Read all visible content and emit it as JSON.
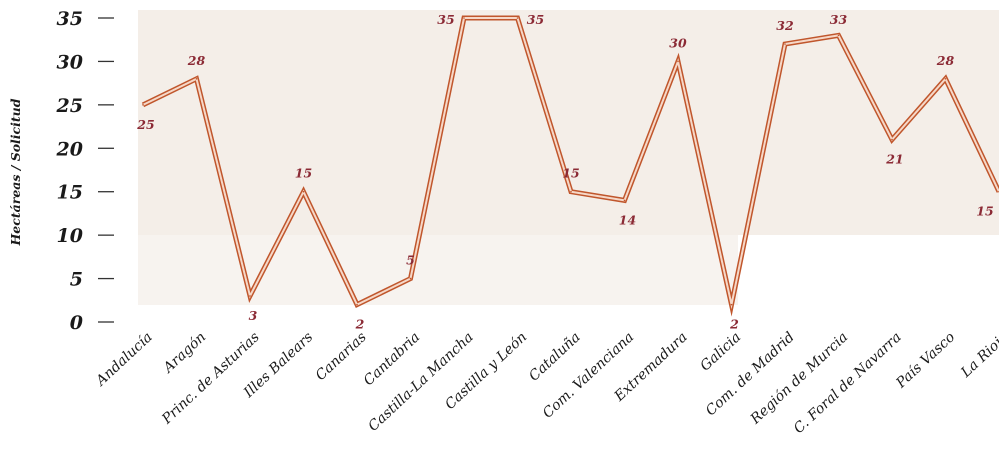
{
  "chart_data": {
    "type": "line",
    "title": "",
    "xlabel": "",
    "ylabel": "Hectáreas / Solicitud",
    "ylim": [
      0,
      35
    ],
    "yticks": [
      0,
      5,
      10,
      15,
      20,
      25,
      30,
      35
    ],
    "grid": false,
    "categories": [
      "Andalucía",
      "Aragón",
      "Princ. de Asturias",
      "Illes Balears",
      "Canarias",
      "Cantabria",
      "Castilla-La Mancha",
      "Castilla y León",
      "Cataluña",
      "Com. Valenciana",
      "Extremadura",
      "Galicia",
      "Com. de Madrid",
      "Región de Murcia",
      "C. Foral de Navarra",
      "País Vasco",
      "La Rioja"
    ],
    "values": [
      25,
      28,
      3,
      15,
      2,
      5,
      35,
      35,
      15,
      14,
      30,
      2,
      32,
      33,
      21,
      28,
      15
    ],
    "colors": {
      "line_outer": "#c0562c",
      "line_inner": "#f6d8c8",
      "label": "#8b2a35",
      "band": "#f4eee8"
    }
  }
}
